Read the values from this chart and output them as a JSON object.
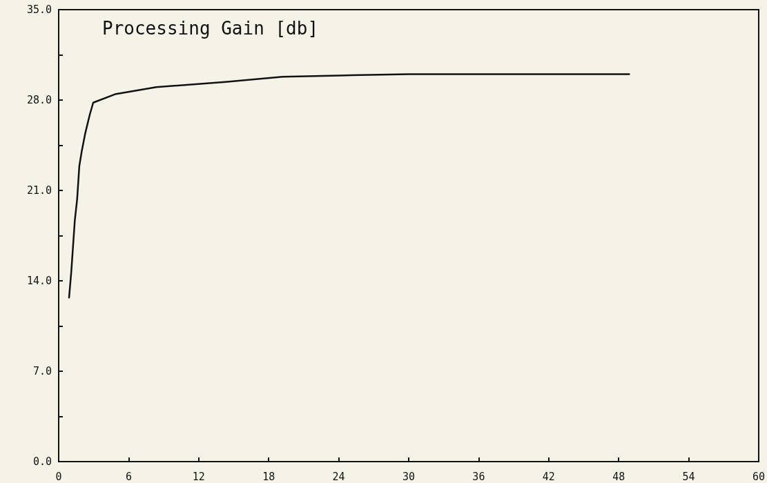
{
  "chart_data": {
    "type": "line",
    "ylabel": "Processing Gain [db]",
    "series": [
      {
        "color": "#111111",
        "x": [
          0.89,
          1.08,
          1.38,
          1.58,
          1.77,
          1.97,
          2.27,
          2.66,
          2.96,
          4.83,
          8.37,
          14.3,
          19.2,
          24,
          30,
          36,
          42,
          48.9
        ],
        "values": [
          12.7,
          14.7,
          18.65,
          20.3,
          22.9,
          24.0,
          25.4,
          26.85,
          27.8,
          28.45,
          29.0,
          29.4,
          29.8,
          29.9,
          30,
          30,
          30,
          30
        ]
      }
    ],
    "xlim": [
      0,
      60
    ],
    "xticks": [
      0,
      6,
      12,
      18,
      24,
      30,
      36,
      42,
      48,
      54,
      60
    ],
    "ylim": [
      0,
      35
    ],
    "yticks": [
      {
        "value": 0,
        "label": "0.0"
      },
      {
        "value": 3.5,
        "label": null
      },
      {
        "value": 7,
        "label": "7.0"
      },
      {
        "value": 10.5,
        "label": null
      },
      {
        "value": 14,
        "label": "14.0"
      },
      {
        "value": 17.5,
        "label": null
      },
      {
        "value": 21,
        "label": "21.0"
      },
      {
        "value": 24.5,
        "label": null
      },
      {
        "value": 28,
        "label": "28.0"
      },
      {
        "value": 31.5,
        "label": null
      },
      {
        "value": 35,
        "label": "35.0"
      }
    ],
    "grid": false,
    "marker": "none",
    "line_style": "solid"
  }
}
